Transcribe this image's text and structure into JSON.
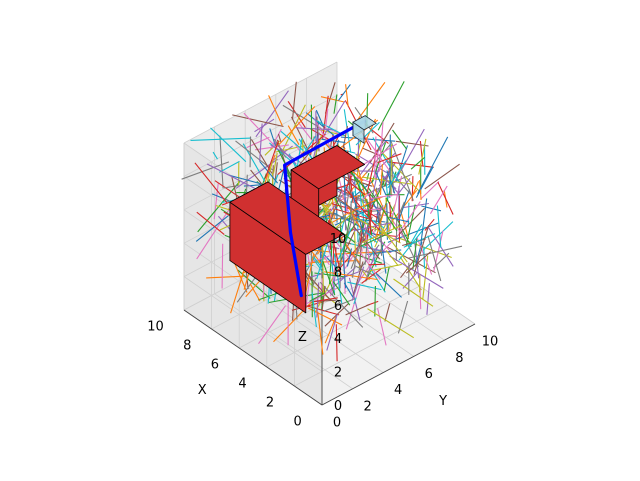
{
  "chart_data": {
    "type": "3d-line",
    "title": "",
    "axes": {
      "x": {
        "label": "X",
        "lim": [
          0,
          10
        ],
        "ticks": [
          0,
          2,
          4,
          6,
          8,
          10
        ]
      },
      "y": {
        "label": "Y",
        "lim": [
          0,
          10
        ],
        "ticks": [
          0,
          2,
          4,
          6,
          8,
          10
        ]
      },
      "z": {
        "label": "Z",
        "lim": [
          0,
          10
        ],
        "ticks": [
          0,
          2,
          4,
          6,
          8,
          10
        ]
      }
    },
    "grid": true,
    "panes_color": "#f2f2f2",
    "path": {
      "color": "#0000ff",
      "points": [
        [
          8,
          10,
          7.6
        ],
        [
          7.7,
          4.5,
          7.8
        ],
        [
          4.5,
          2.0,
          6.8
        ],
        [
          1.5,
          0,
          5.7
        ]
      ]
    },
    "start_marker": {
      "color": "#add8e6",
      "center": [
        8.0,
        10.0,
        7.1
      ],
      "size": [
        0.8,
        0.8,
        0.8
      ]
    },
    "obstacles": [
      {
        "color": "#d03030",
        "min": [
          8.0,
          7.0,
          2.0
        ],
        "max": [
          10.0,
          10.0,
          5.0
        ]
      },
      {
        "color": "#d03030",
        "min": [
          4.5,
          3.0,
          1.5
        ],
        "max": [
          10.0,
          5.5,
          5.0
        ]
      }
    ],
    "exploration_tree": {
      "segment_count": 700,
      "x_range": [
        0,
        10
      ],
      "y_range": [
        0,
        10
      ],
      "z_range": [
        0,
        10
      ],
      "palette": [
        "#1f77b4",
        "#ff7f0e",
        "#2ca02c",
        "#d62728",
        "#9467bd",
        "#8c564b",
        "#e377c2",
        "#7f7f7f",
        "#bcbd22",
        "#17becf"
      ]
    }
  }
}
